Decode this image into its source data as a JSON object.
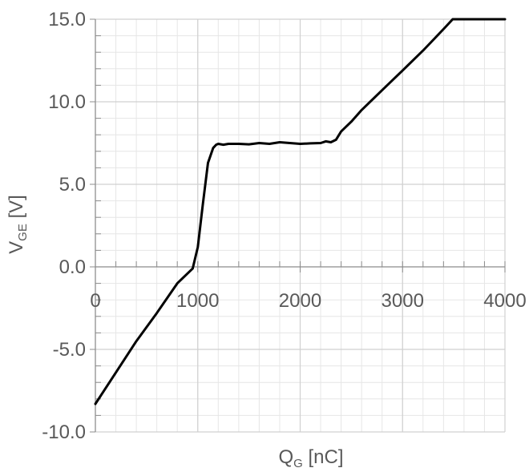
{
  "chart_data": {
    "type": "line",
    "title": "",
    "xlabel": {
      "main": "Q",
      "sub": "G",
      "unit": " [nC]"
    },
    "ylabel": {
      "main": "V",
      "sub": "GE",
      "unit": " [V]"
    },
    "xlim": [
      0,
      4000
    ],
    "ylim": [
      -10,
      15
    ],
    "x_ticks": [
      0,
      1000,
      2000,
      3000,
      4000
    ],
    "x_tick_labels": [
      "0",
      "1000",
      "2000",
      "3000",
      "4000"
    ],
    "y_ticks": [
      15,
      10,
      5,
      0,
      -5,
      -10
    ],
    "y_tick_labels": [
      "15.0",
      "10.0",
      "5.0",
      "0.0",
      "-5.0",
      "-10.0"
    ],
    "grid": true,
    "legend": "none",
    "series": [
      {
        "color": "#000000",
        "x": [
          0,
          200,
          400,
          600,
          800,
          950,
          1000,
          1050,
          1100,
          1150,
          1180,
          1200,
          1250,
          1300,
          1400,
          1500,
          1600,
          1700,
          1800,
          1900,
          2000,
          2100,
          2200,
          2250,
          2300,
          2350,
          2400,
          2500,
          2600,
          2800,
          3000,
          3200,
          3400,
          3490,
          3500,
          4000
        ],
        "y": [
          -8.3,
          -6.4,
          -4.5,
          -2.8,
          -1.0,
          -0.1,
          1.2,
          3.8,
          6.3,
          7.2,
          7.4,
          7.45,
          7.4,
          7.45,
          7.45,
          7.42,
          7.5,
          7.45,
          7.55,
          7.5,
          7.45,
          7.48,
          7.5,
          7.6,
          7.55,
          7.7,
          8.2,
          8.8,
          9.5,
          10.7,
          11.9,
          13.1,
          14.4,
          15.0,
          15.0,
          15.0
        ]
      }
    ]
  }
}
